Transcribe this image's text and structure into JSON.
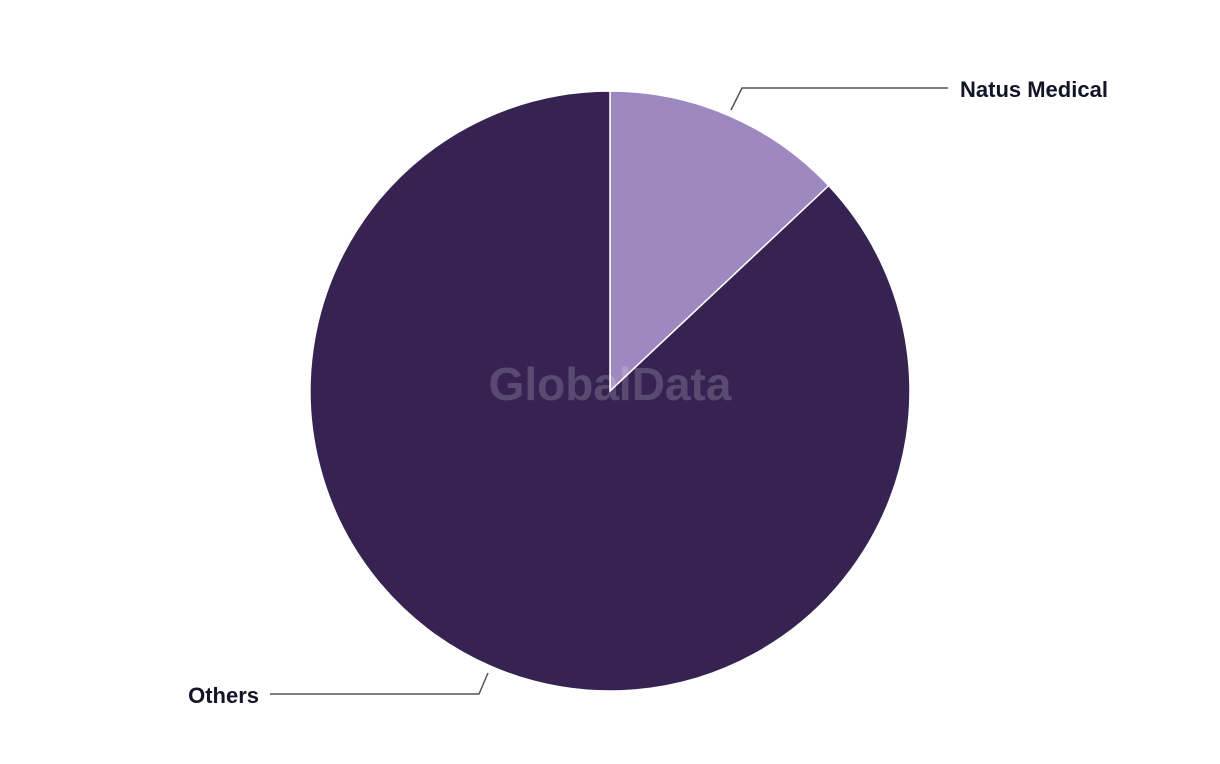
{
  "chart_data": {
    "type": "pie",
    "title": "",
    "slices": [
      {
        "label": "Natus Medical",
        "value": 13,
        "color": "#9e88c0"
      },
      {
        "label": "Others",
        "value": 87,
        "color": "#362352"
      }
    ],
    "start_angle": "12 o'clock",
    "direction": "clockwise",
    "legend": "leader-line labels"
  },
  "watermark": "GlobalData"
}
